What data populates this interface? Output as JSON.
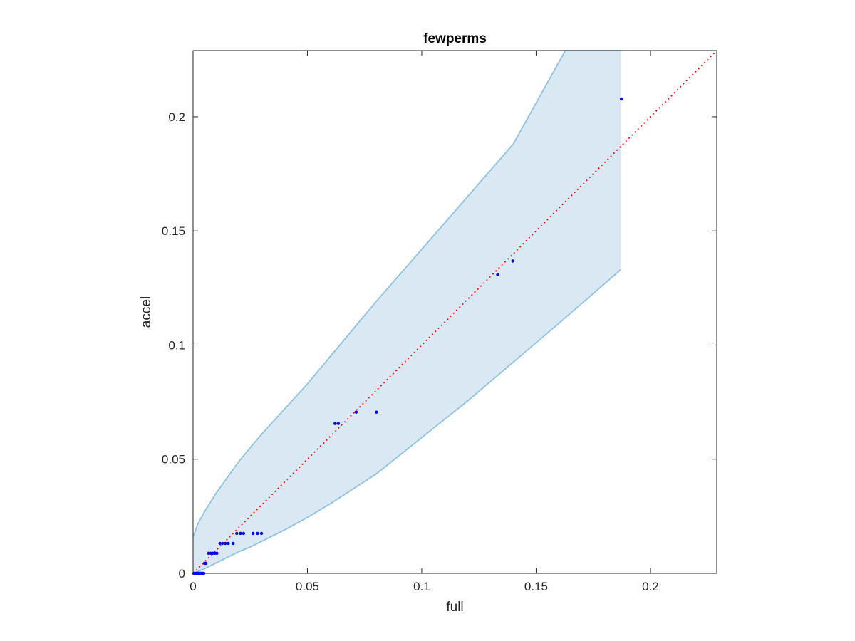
{
  "chart_data": {
    "type": "scatter",
    "title": "fewperms",
    "xlabel": "full",
    "ylabel": "accel",
    "xlim": [
      0,
      0.229
    ],
    "ylim": [
      0,
      0.229
    ],
    "xticks": [
      0,
      0.05,
      0.1,
      0.15,
      0.2
    ],
    "xtick_labels": [
      "0",
      "0.05",
      "0.1",
      "0.15",
      "0.2"
    ],
    "yticks": [
      0,
      0.05,
      0.1,
      0.15,
      0.2
    ],
    "ytick_labels": [
      "0",
      "0.05",
      "0.1",
      "0.15",
      "0.2"
    ],
    "grid": false,
    "box": true,
    "series": [
      {
        "kind": "band",
        "color": "#dae8f4",
        "edge_color": "#8cc2e2",
        "x": [
          0,
          0.0006,
          0.002,
          0.005,
          0.01,
          0.015,
          0.02,
          0.025,
          0.03,
          0.04,
          0.05,
          0.06,
          0.07,
          0.08,
          0.1,
          0.12,
          0.14,
          0.16,
          0.1628,
          0.187
        ],
        "upper": [
          0.0162,
          0.0175,
          0.0215,
          0.027,
          0.035,
          0.042,
          0.049,
          0.055,
          0.061,
          0.072,
          0.083,
          0.095,
          0.107,
          0.119,
          0.142,
          0.165,
          0.188,
          0.224,
          0.229,
          0.229
        ],
        "lower": [
          0,
          0.0002,
          0.0008,
          0.002,
          0.0045,
          0.007,
          0.0095,
          0.0115,
          0.014,
          0.019,
          0.0245,
          0.0305,
          0.037,
          0.0435,
          0.0595,
          0.0755,
          0.0925,
          0.1095,
          0.112,
          0.133
        ]
      },
      {
        "kind": "line",
        "style": "dotted",
        "color": "#ff0000",
        "x": [
          0,
          0.229
        ],
        "y": [
          0,
          0.229
        ]
      },
      {
        "kind": "scatter",
        "color": "#0000ff",
        "points": [
          [
            0.0003,
            0
          ],
          [
            0.0007,
            0
          ],
          [
            0.0012,
            0
          ],
          [
            0.0016,
            0
          ],
          [
            0.002,
            0
          ],
          [
            0.0024,
            0
          ],
          [
            0.0028,
            0
          ],
          [
            0.0032,
            0
          ],
          [
            0.0037,
            0
          ],
          [
            0.0042,
            0
          ],
          [
            0.0047,
            0
          ],
          [
            0.005,
            0.0044
          ],
          [
            0.0056,
            0.0044
          ],
          [
            0.0068,
            0.0088
          ],
          [
            0.0077,
            0.0088
          ],
          [
            0.0086,
            0.0088
          ],
          [
            0.0095,
            0.0088
          ],
          [
            0.0104,
            0.0088
          ],
          [
            0.0117,
            0.0131
          ],
          [
            0.0128,
            0.0131
          ],
          [
            0.0141,
            0.0131
          ],
          [
            0.0154,
            0.0131
          ],
          [
            0.0175,
            0.0131
          ],
          [
            0.0191,
            0.0175
          ],
          [
            0.0207,
            0.0175
          ],
          [
            0.0221,
            0.0175
          ],
          [
            0.0262,
            0.0175
          ],
          [
            0.0282,
            0.0175
          ],
          [
            0.0299,
            0.0175
          ],
          [
            0.0621,
            0.0656
          ],
          [
            0.0635,
            0.0656
          ],
          [
            0.0713,
            0.0706
          ],
          [
            0.0802,
            0.0706
          ],
          [
            0.1332,
            0.1308
          ],
          [
            0.1398,
            0.1368
          ],
          [
            0.1873,
            0.2078
          ]
        ]
      }
    ]
  }
}
